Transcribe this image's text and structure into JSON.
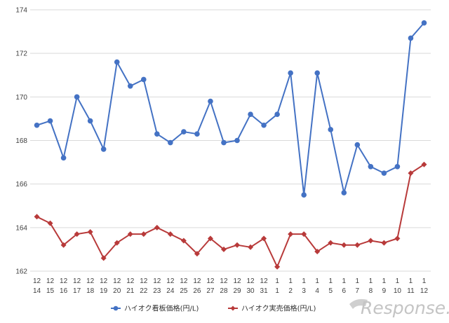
{
  "chart_data": {
    "type": "line",
    "title": "",
    "xlabel": "",
    "ylabel": "",
    "ylim": [
      162,
      174
    ],
    "yticks": [
      162,
      164,
      166,
      168,
      170,
      172,
      174
    ],
    "grid": true,
    "legend_position": "bottom",
    "categories": [
      {
        "month": "12",
        "day": "14"
      },
      {
        "month": "12",
        "day": "15"
      },
      {
        "month": "12",
        "day": "16"
      },
      {
        "month": "12",
        "day": "17"
      },
      {
        "month": "12",
        "day": "18"
      },
      {
        "month": "12",
        "day": "19"
      },
      {
        "month": "12",
        "day": "20"
      },
      {
        "month": "12",
        "day": "21"
      },
      {
        "month": "12",
        "day": "22"
      },
      {
        "month": "12",
        "day": "23"
      },
      {
        "month": "12",
        "day": "24"
      },
      {
        "month": "12",
        "day": "25"
      },
      {
        "month": "12",
        "day": "26"
      },
      {
        "month": "12",
        "day": "27"
      },
      {
        "month": "12",
        "day": "28"
      },
      {
        "month": "12",
        "day": "29"
      },
      {
        "month": "12",
        "day": "30"
      },
      {
        "month": "12",
        "day": "31"
      },
      {
        "month": "1",
        "day": "1"
      },
      {
        "month": "1",
        "day": "2"
      },
      {
        "month": "1",
        "day": "3"
      },
      {
        "month": "1",
        "day": "4"
      },
      {
        "month": "1",
        "day": "5"
      },
      {
        "month": "1",
        "day": "6"
      },
      {
        "month": "1",
        "day": "7"
      },
      {
        "month": "1",
        "day": "8"
      },
      {
        "month": "1",
        "day": "9"
      },
      {
        "month": "1",
        "day": "10"
      },
      {
        "month": "1",
        "day": "11"
      },
      {
        "month": "1",
        "day": "12"
      }
    ],
    "series": [
      {
        "name": "ハイオク看板価格(円/L)",
        "color": "#4472c4",
        "marker": "circle",
        "values": [
          168.7,
          168.9,
          167.2,
          170.0,
          168.9,
          167.6,
          171.6,
          170.5,
          170.8,
          168.3,
          167.9,
          168.4,
          168.3,
          169.8,
          167.9,
          168.0,
          169.2,
          168.7,
          169.2,
          171.1,
          165.5,
          171.1,
          168.5,
          165.6,
          167.8,
          166.8,
          166.5,
          166.8,
          172.7,
          173.4
        ]
      },
      {
        "name": "ハイオク実売価格(円/L)",
        "color": "#b83a3a",
        "marker": "diamond",
        "values": [
          164.5,
          164.2,
          163.2,
          163.7,
          163.8,
          162.6,
          163.3,
          163.7,
          163.7,
          164.0,
          163.7,
          163.4,
          162.8,
          163.5,
          163.0,
          163.2,
          163.1,
          163.5,
          162.2,
          163.7,
          163.7,
          162.9,
          163.3,
          163.2,
          163.2,
          163.4,
          163.3,
          163.5,
          166.5,
          166.9
        ]
      }
    ]
  },
  "watermark": {
    "text": "Response."
  }
}
